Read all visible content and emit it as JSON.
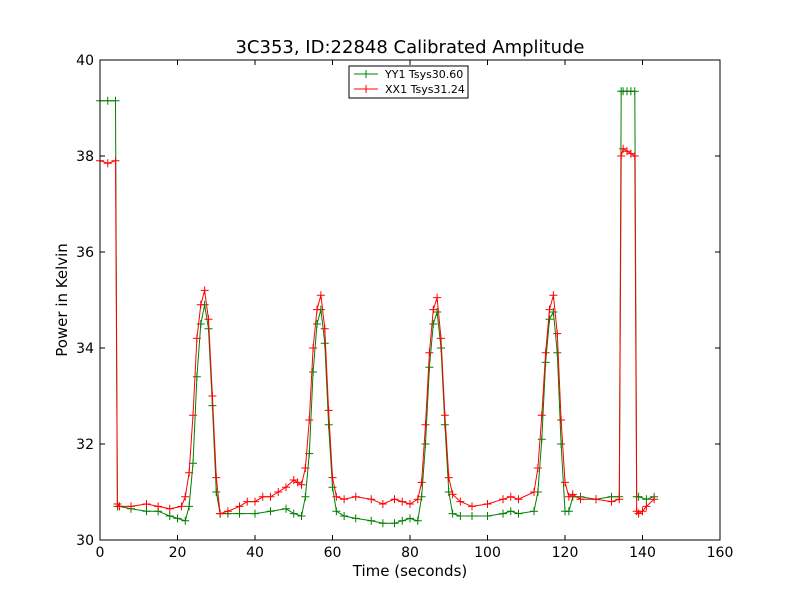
{
  "chart_data": {
    "type": "line",
    "title": "3C353, ID:22848 Calibrated Amplitude",
    "xlabel": "Time (seconds)",
    "ylabel": "Power in Kelvin",
    "xlim": [
      0,
      160
    ],
    "ylim": [
      30,
      40
    ],
    "xticks": [
      "0",
      "20",
      "40",
      "60",
      "80",
      "100",
      "120",
      "140",
      "160"
    ],
    "yticks": [
      "30",
      "32",
      "34",
      "36",
      "38",
      "40"
    ],
    "grid": false,
    "legend_position": "top-center",
    "marker": "+",
    "series": [
      {
        "name": "YY1 Tsys30.60",
        "color": "#008000",
        "x": [
          0,
          2,
          4,
          4.5,
          5,
          8,
          12,
          15,
          18,
          20,
          22,
          23,
          24,
          25,
          26,
          27,
          28,
          29,
          30,
          31,
          33,
          36,
          40,
          44,
          48,
          50,
          52,
          53,
          54,
          55,
          56,
          57,
          58,
          59,
          60,
          61,
          63,
          66,
          70,
          73,
          76,
          78,
          80,
          82,
          83,
          84,
          85,
          86,
          87,
          88,
          89,
          90,
          91,
          93,
          96,
          100,
          104,
          106,
          108,
          112,
          113,
          114,
          115,
          116,
          117,
          118,
          119,
          120,
          121,
          122,
          124,
          128,
          132,
          134,
          134.5,
          135,
          136,
          137,
          138,
          138.5,
          139,
          141,
          143
        ],
        "values": [
          39.15,
          39.15,
          39.15,
          30.7,
          30.7,
          30.65,
          30.6,
          30.6,
          30.5,
          30.45,
          30.4,
          30.7,
          31.6,
          33.4,
          34.5,
          34.9,
          34.4,
          32.8,
          31.0,
          30.55,
          30.55,
          30.55,
          30.55,
          30.6,
          30.65,
          30.55,
          30.5,
          30.9,
          31.8,
          33.5,
          34.5,
          34.8,
          34.1,
          32.4,
          31.1,
          30.6,
          30.5,
          30.45,
          30.4,
          30.35,
          30.35,
          30.4,
          30.45,
          30.4,
          30.9,
          32.0,
          33.6,
          34.5,
          34.75,
          34.0,
          32.4,
          31.0,
          30.55,
          30.5,
          30.5,
          30.5,
          30.55,
          30.6,
          30.55,
          30.6,
          31.0,
          32.1,
          33.7,
          34.6,
          34.75,
          33.9,
          32.0,
          30.6,
          30.6,
          30.9,
          30.9,
          30.85,
          30.9,
          30.9,
          39.35,
          39.35,
          39.35,
          39.35,
          39.35,
          30.9,
          30.9,
          30.85,
          30.9
        ]
      },
      {
        "name": "XX1 Tsys31.24",
        "color": "#ff0000",
        "x": [
          0,
          2,
          4,
          4.5,
          5,
          8,
          12,
          15,
          18,
          21,
          22,
          23,
          24,
          25,
          26,
          27,
          28,
          29,
          30,
          31,
          33,
          36,
          38,
          40,
          42,
          44,
          46,
          48,
          50,
          51,
          52,
          53,
          54,
          55,
          56,
          57,
          58,
          59,
          60,
          61,
          63,
          66,
          70,
          73,
          76,
          78,
          80,
          82,
          83,
          84,
          85,
          86,
          87,
          88,
          89,
          90,
          91,
          93,
          96,
          100,
          104,
          106,
          108,
          112,
          113,
          114,
          115,
          116,
          117,
          118,
          119,
          120,
          121,
          122,
          124,
          128,
          132,
          134,
          134.5,
          135,
          136,
          137,
          138,
          138.5,
          139,
          140,
          141,
          143
        ],
        "values": [
          37.9,
          37.85,
          37.9,
          30.75,
          30.7,
          30.7,
          30.75,
          30.7,
          30.65,
          30.7,
          30.9,
          31.4,
          32.6,
          34.2,
          34.9,
          35.2,
          34.6,
          33.0,
          31.3,
          30.55,
          30.6,
          30.7,
          30.8,
          30.8,
          30.9,
          30.9,
          31.0,
          31.1,
          31.25,
          31.2,
          31.15,
          31.5,
          32.5,
          34.0,
          34.8,
          35.1,
          34.4,
          32.7,
          31.3,
          30.9,
          30.85,
          30.9,
          30.85,
          30.75,
          30.85,
          30.8,
          30.75,
          30.85,
          31.2,
          32.4,
          33.9,
          34.8,
          35.05,
          34.2,
          32.6,
          31.3,
          30.95,
          30.8,
          30.7,
          30.75,
          30.85,
          30.9,
          30.85,
          31.0,
          31.5,
          32.6,
          33.9,
          34.8,
          35.1,
          34.3,
          32.5,
          31.2,
          30.9,
          30.95,
          30.85,
          30.85,
          30.8,
          30.85,
          38.0,
          38.15,
          38.1,
          38.05,
          38.0,
          30.6,
          30.55,
          30.6,
          30.7,
          30.85
        ]
      }
    ]
  }
}
